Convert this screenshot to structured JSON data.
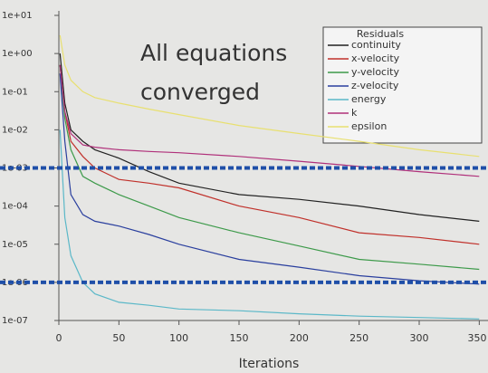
{
  "chart_data": {
    "type": "line",
    "annotation": [
      "All equations",
      "converged"
    ],
    "x_label": "Iterations",
    "legend_title": "Residuals",
    "y_scale": "log",
    "x": [
      1,
      5,
      10,
      20,
      30,
      50,
      75,
      100,
      150,
      200,
      250,
      300,
      350
    ],
    "series": [
      {
        "name": "continuity",
        "color": "#222222",
        "values": [
          1,
          0.05,
          0.01,
          0.005,
          0.003,
          0.0018,
          0.0008,
          0.0004,
          0.0002,
          0.00015,
          0.0001,
          6e-05,
          4e-05
        ]
      },
      {
        "name": "x-velocity",
        "color": "#c0302a",
        "values": [
          0.5,
          0.03,
          0.005,
          0.002,
          0.001,
          0.0005,
          0.0004,
          0.0003,
          0.0001,
          5e-05,
          2e-05,
          1.5e-05,
          1e-05
        ]
      },
      {
        "name": "y-velocity",
        "color": "#3d9a4a",
        "values": [
          0.5,
          0.02,
          0.003,
          0.0006,
          0.0004,
          0.0002,
          0.0001,
          5e-05,
          2e-05,
          9e-06,
          4e-06,
          3e-06,
          2.2e-06
        ]
      },
      {
        "name": "z-velocity",
        "color": "#2a3f9e",
        "values": [
          0.3,
          0.005,
          0.0002,
          6e-05,
          4e-05,
          3e-05,
          1.8e-05,
          1e-05,
          4e-06,
          2.5e-06,
          1.5e-06,
          1.1e-06,
          9e-07
        ]
      },
      {
        "name": "energy",
        "color": "#5bb8c8",
        "values": [
          0.01,
          5e-05,
          5e-06,
          1e-06,
          5e-07,
          3e-07,
          2.5e-07,
          2e-07,
          1.8e-07,
          1.5e-07,
          1.3e-07,
          1.2e-07,
          1.1e-07
        ]
      },
      {
        "name": "k",
        "color": "#b0307a",
        "values": [
          0.5,
          0.03,
          0.008,
          0.004,
          0.0035,
          0.003,
          0.0027,
          0.0025,
          0.002,
          0.0015,
          0.0011,
          0.0008,
          0.0006
        ]
      },
      {
        "name": "epsilon",
        "color": "#e8e070",
        "values": [
          3,
          0.5,
          0.2,
          0.1,
          0.07,
          0.05,
          0.035,
          0.025,
          0.013,
          0.008,
          0.005,
          0.003,
          0.002
        ]
      }
    ],
    "reference_lines": [
      0.001,
      1e-06
    ],
    "reference_color": "#1f4fa8",
    "xlim": [
      0,
      352
    ],
    "xticks": [
      0,
      50,
      100,
      150,
      200,
      250,
      300,
      350
    ],
    "ylim": [
      1e-07,
      10
    ],
    "yticks": [
      {
        "value": 10,
        "label": "1e+01"
      },
      {
        "value": 1,
        "label": "1e+00"
      },
      {
        "value": 0.1,
        "label": "1e-01"
      },
      {
        "value": 0.01,
        "label": "1e-02"
      },
      {
        "value": 0.001,
        "label": "1e-03"
      },
      {
        "value": 0.0001,
        "label": "1e-04"
      },
      {
        "value": 1e-05,
        "label": "1e-05"
      },
      {
        "value": 1e-06,
        "label": "1e-06"
      },
      {
        "value": 1e-07,
        "label": "1e-07"
      }
    ]
  }
}
